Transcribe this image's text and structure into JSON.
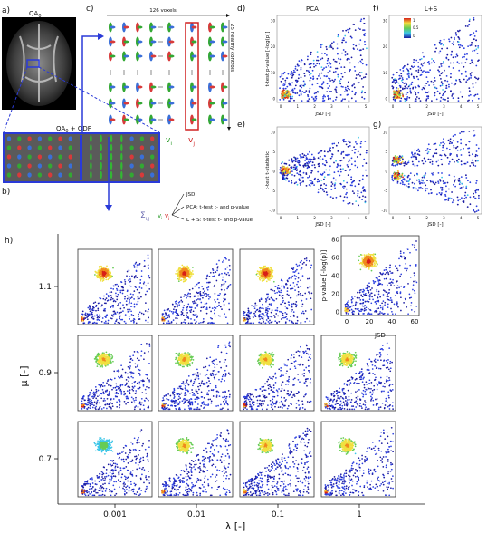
{
  "panel_labels": {
    "a": "a)",
    "b": "b)",
    "c": "c)",
    "d": "d)",
    "e": "e)",
    "f": "f)",
    "g": "g)",
    "h": "h)"
  },
  "panel_a": {
    "title": "QA",
    "title_sub": "0"
  },
  "panel_b": {
    "title": "QA",
    "title_sub": "0",
    "title_rest": " + ODF"
  },
  "panel_c": {
    "voxels_label": "126 voxels",
    "subjects_label": "25 healthy controls",
    "vi": "v",
    "vi_sub": "i",
    "vj": "v",
    "vj_sub": "j",
    "sum_label": "Σ",
    "sum_sub": "i,j",
    "outputs": [
      "JSD",
      "PCA: t-test t- and p-value",
      "L + S: t-test t- and p-value"
    ]
  },
  "scatter_titles": {
    "pca": "PCA",
    "ls": "L+S"
  },
  "colorbar_ticks": [
    "1",
    "0.5",
    "0"
  ],
  "panel_d": {
    "ylabel": "t-test p-value [-log(p)]",
    "xlabel": "JSD [-]",
    "yticks": [
      "0",
      "10",
      "20",
      "30"
    ],
    "xticks": [
      "0",
      "1",
      "2",
      "3",
      "4",
      "5"
    ]
  },
  "panel_e": {
    "ylabel": "t-test t-statistic",
    "xlabel": "JSD [-]",
    "yticks": [
      "-10",
      "-5",
      "0",
      "5",
      "10"
    ],
    "xticks": [
      "0",
      "1",
      "2",
      "3",
      "4",
      "5"
    ]
  },
  "panel_f": {
    "xlabel": "JSD [-]",
    "yticks": [
      "0",
      "10",
      "20",
      "30"
    ],
    "xticks": [
      "0",
      "1",
      "2",
      "3",
      "4",
      "5"
    ]
  },
  "panel_g": {
    "xlabel": "JSD [-]",
    "yticks": [
      "-10",
      "-5",
      "0",
      "5",
      "10"
    ],
    "xticks": [
      "0",
      "1",
      "2",
      "3",
      "4",
      "5"
    ]
  },
  "panel_h": {
    "ylabel": "μ [-]",
    "xlabel": "λ [-]",
    "mu_ticks": [
      "1.1",
      "0.9",
      "0.7"
    ],
    "lambda_ticks": [
      "0.001",
      "0.01",
      "0.1",
      "1"
    ],
    "inset": {
      "ylabel": "p-value [-log(p)]",
      "xlabel": "JSD",
      "yticks": [
        "0",
        "20",
        "40",
        "60",
        "80"
      ],
      "xticks": [
        "0",
        "20",
        "40",
        "60"
      ]
    }
  },
  "colors": {
    "dark_blue": "#1a1aa0",
    "blue": "#2b3fe0",
    "cyan": "#3cc6e8",
    "green": "#66cc55",
    "yellow": "#f0e040",
    "orange": "#f08a1e",
    "red": "#d82018",
    "arrow_blue": "#2a3ad8",
    "box_red": "#d02020",
    "vi_green": "#2a9a2a",
    "vj_red": "#d02020"
  }
}
